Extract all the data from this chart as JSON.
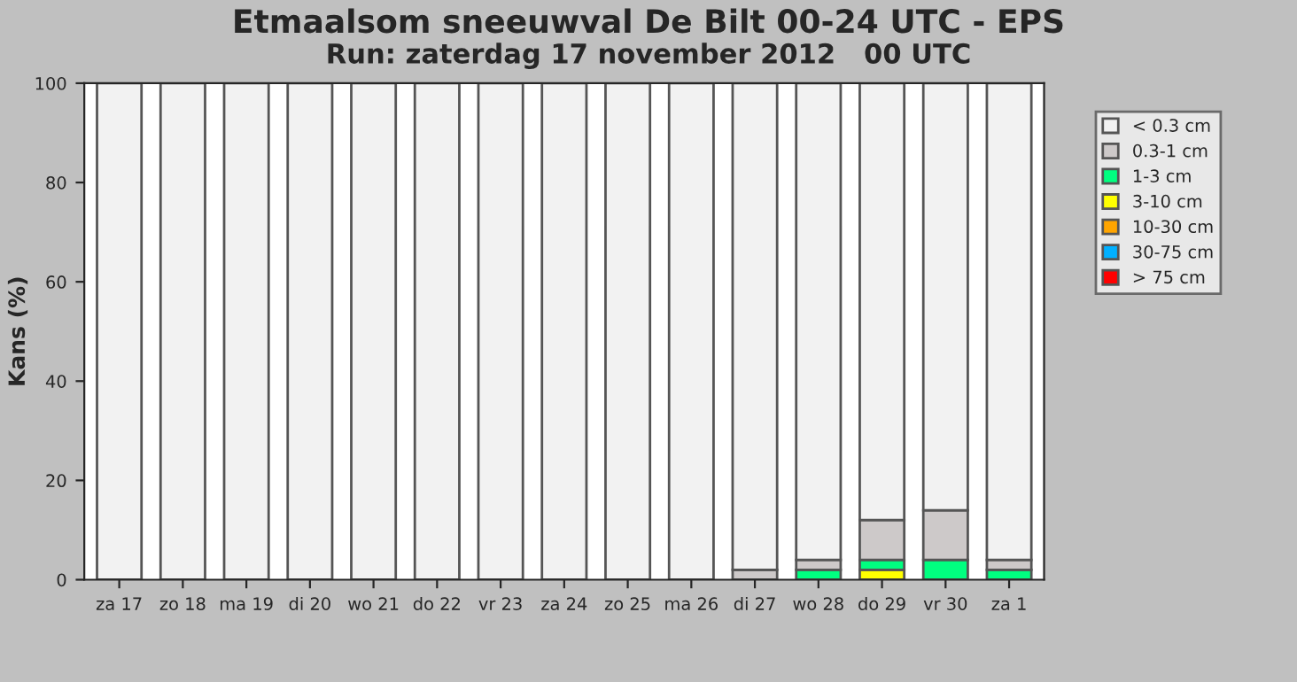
{
  "chart_data": {
    "type": "bar",
    "title": "Etmaalsom sneeuwval De Bilt 00-24 UTC - EPS",
    "subtitle": "Run: zaterdag 17 november 2012   00 UTC",
    "ylabel": "Kans (%)",
    "categories": [
      "za 17",
      "zo 18",
      "ma 19",
      "di 20",
      "wo 21",
      "do 22",
      "vr 23",
      "za 24",
      "zo 25",
      "ma 26",
      "di 27",
      "wo 28",
      "do 29",
      "vr 30",
      "za 1"
    ],
    "stacked": true,
    "ylim": [
      0,
      100
    ],
    "yticks": [
      0,
      20,
      40,
      60,
      80,
      100
    ],
    "grid": false,
    "legend": "right",
    "series": [
      {
        "name": "> 75 cm",
        "color": "#ff0000",
        "values": [
          0,
          0,
          0,
          0,
          0,
          0,
          0,
          0,
          0,
          0,
          0,
          0,
          0,
          0,
          0
        ]
      },
      {
        "name": "30-75 cm",
        "color": "#00b0ff",
        "values": [
          0,
          0,
          0,
          0,
          0,
          0,
          0,
          0,
          0,
          0,
          0,
          0,
          0,
          0,
          0
        ]
      },
      {
        "name": "10-30 cm",
        "color": "#ffa500",
        "values": [
          0,
          0,
          0,
          0,
          0,
          0,
          0,
          0,
          0,
          0,
          0,
          0,
          0,
          0,
          0
        ]
      },
      {
        "name": "3-10 cm",
        "color": "#ffff00",
        "values": [
          0,
          0,
          0,
          0,
          0,
          0,
          0,
          0,
          0,
          0,
          0,
          0,
          2,
          0,
          0
        ]
      },
      {
        "name": "1-3 cm",
        "color": "#00ff80",
        "values": [
          0,
          0,
          0,
          0,
          0,
          0,
          0,
          0,
          0,
          0,
          0,
          2,
          2,
          4,
          2
        ]
      },
      {
        "name": "0.3-1 cm",
        "color": "#cdc9c9",
        "values": [
          0,
          0,
          0,
          0,
          0,
          0,
          0,
          0,
          0,
          0,
          2,
          2,
          8,
          10,
          2
        ]
      },
      {
        "name": "< 0.3 cm",
        "color": "#f2f2f2",
        "values": [
          100,
          100,
          100,
          100,
          100,
          100,
          100,
          100,
          100,
          100,
          98,
          96,
          88,
          86,
          96
        ]
      }
    ]
  }
}
